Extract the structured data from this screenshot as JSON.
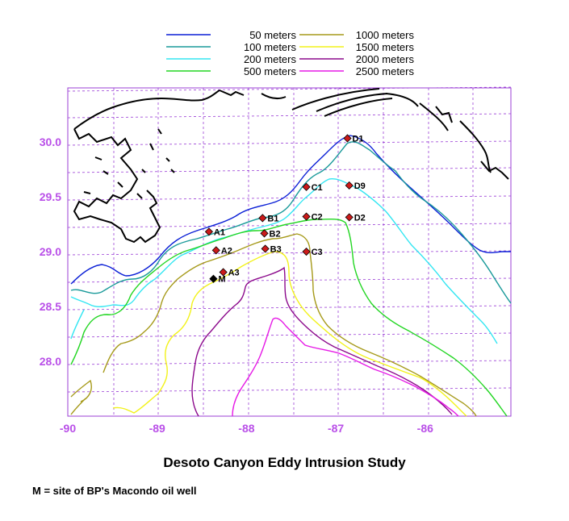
{
  "title": "Desoto Canyon Eddy Intrusion Study",
  "note": "M = site of BP's Macondo oil well",
  "legend": [
    {
      "label": "50 meters",
      "color": "#0a1fd6"
    },
    {
      "label": "100 meters",
      "color": "#1a9a9a"
    },
    {
      "label": "200 meters",
      "color": "#33e6f2"
    },
    {
      "label": "500 meters",
      "color": "#22d622"
    },
    {
      "label": "1000 meters",
      "color": "#a69a1a"
    },
    {
      "label": "1500 meters",
      "color": "#f2f21a"
    },
    {
      "label": "2000 meters",
      "color": "#8c0a8c"
    },
    {
      "label": "2500 meters",
      "color": "#e61ae6"
    }
  ],
  "x_ticks": [
    "-90",
    "-89",
    "-88",
    "-87",
    "-86"
  ],
  "y_ticks": [
    "30.0",
    "29.5",
    "29.0",
    "28.5",
    "28.0"
  ],
  "stations": [
    {
      "label": "D1",
      "lon": -86.87,
      "lat": 30.01
    },
    {
      "label": "C1",
      "lon": -87.33,
      "lat": 29.57
    },
    {
      "label": "D9",
      "lon": -86.85,
      "lat": 29.58
    },
    {
      "label": "B1",
      "lon": -87.82,
      "lat": 29.29
    },
    {
      "label": "C2",
      "lon": -87.33,
      "lat": 29.3
    },
    {
      "label": "D2",
      "lon": -86.85,
      "lat": 29.29
    },
    {
      "label": "A1",
      "lon": -88.42,
      "lat": 29.17
    },
    {
      "label": "B2",
      "lon": -87.8,
      "lat": 29.15
    },
    {
      "label": "A2",
      "lon": -88.34,
      "lat": 29.0
    },
    {
      "label": "B3",
      "lon": -87.79,
      "lat": 29.01
    },
    {
      "label": "C3",
      "lon": -87.33,
      "lat": 28.98
    },
    {
      "label": "A3",
      "lon": -88.26,
      "lat": 28.8
    },
    {
      "label": "M",
      "lon": -88.37,
      "lat": 28.74
    }
  ]
}
